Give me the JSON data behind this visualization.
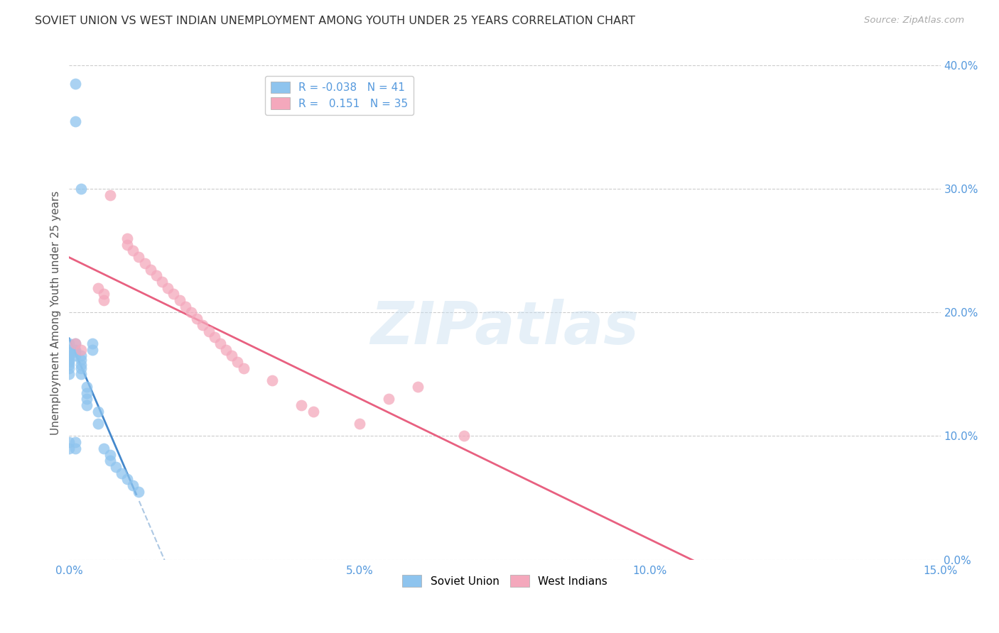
{
  "title": "SOVIET UNION VS WEST INDIAN UNEMPLOYMENT AMONG YOUTH UNDER 25 YEARS CORRELATION CHART",
  "source": "Source: ZipAtlas.com",
  "ylabel": "Unemployment Among Youth under 25 years",
  "xlim": [
    0.0,
    0.15
  ],
  "ylim": [
    0.0,
    0.4
  ],
  "soviet_color": "#8EC4EE",
  "west_indian_color": "#F4A8BC",
  "trendline_soviet_solid_color": "#4488CC",
  "trendline_soviet_dash_color": "#99BBDD",
  "trendline_west_color": "#E86080",
  "soviet_x": [
    0.001,
    0.001,
    0.002,
    0.0,
    0.0,
    0.0,
    0.0,
    0.0,
    0.0,
    0.0,
    0.0,
    0.0,
    0.0,
    0.0,
    0.001,
    0.001,
    0.001,
    0.001,
    0.001,
    0.001,
    0.002,
    0.002,
    0.002,
    0.002,
    0.002,
    0.003,
    0.003,
    0.003,
    0.003,
    0.004,
    0.004,
    0.005,
    0.005,
    0.006,
    0.007,
    0.007,
    0.008,
    0.009,
    0.01,
    0.011,
    0.012
  ],
  "soviet_y": [
    0.385,
    0.355,
    0.3,
    0.175,
    0.17,
    0.168,
    0.165,
    0.162,
    0.16,
    0.158,
    0.155,
    0.15,
    0.095,
    0.09,
    0.175,
    0.17,
    0.168,
    0.165,
    0.095,
    0.09,
    0.165,
    0.162,
    0.158,
    0.155,
    0.15,
    0.14,
    0.135,
    0.13,
    0.125,
    0.175,
    0.17,
    0.12,
    0.11,
    0.09,
    0.085,
    0.08,
    0.075,
    0.07,
    0.065,
    0.06,
    0.055
  ],
  "west_x": [
    0.001,
    0.002,
    0.005,
    0.006,
    0.006,
    0.007,
    0.01,
    0.01,
    0.011,
    0.012,
    0.013,
    0.014,
    0.015,
    0.016,
    0.017,
    0.018,
    0.019,
    0.02,
    0.021,
    0.022,
    0.023,
    0.024,
    0.025,
    0.026,
    0.027,
    0.028,
    0.029,
    0.03,
    0.035,
    0.04,
    0.042,
    0.05,
    0.055,
    0.06,
    0.068
  ],
  "west_y": [
    0.175,
    0.17,
    0.22,
    0.215,
    0.21,
    0.295,
    0.26,
    0.255,
    0.25,
    0.245,
    0.24,
    0.235,
    0.23,
    0.225,
    0.22,
    0.215,
    0.21,
    0.205,
    0.2,
    0.195,
    0.19,
    0.185,
    0.18,
    0.175,
    0.17,
    0.165,
    0.16,
    0.155,
    0.145,
    0.125,
    0.12,
    0.11,
    0.13,
    0.14,
    0.1
  ],
  "watermark_text": "ZIPatlas",
  "background_color": "#FFFFFF",
  "grid_color": "#CCCCCC"
}
